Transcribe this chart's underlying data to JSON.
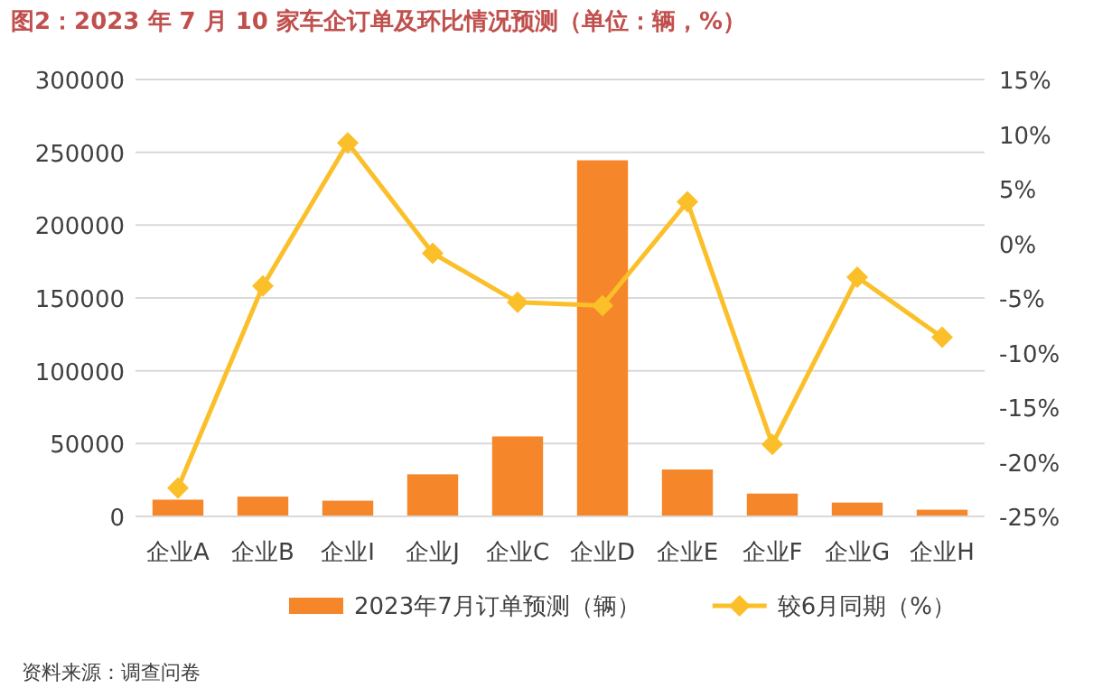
{
  "chart_data": {
    "type": "bar",
    "title": "图2：2023 年 7 月 10 家车企订单及环比情况预测（单位：辆，%）",
    "categories": [
      "企业A",
      "企业B",
      "企业I",
      "企业J",
      "企业C",
      "企业D",
      "企业E",
      "企业F",
      "企业G",
      "企业H"
    ],
    "series": [
      {
        "name": "2023年7月订单预测（辆）",
        "color": "#f5862a",
        "values": [
          11500,
          13600,
          10800,
          28900,
          54900,
          244500,
          32200,
          15700,
          9500,
          4600
        ]
      },
      {
        "name": "较6月同期（%）",
        "type": "line",
        "axis": "y2",
        "color": "#fbbf2a",
        "marker": "diamond",
        "values": [
          -22.4,
          -3.9,
          9.2,
          -0.9,
          -5.4,
          -5.7,
          3.8,
          -18.4,
          -3.1,
          -8.6
        ]
      }
    ],
    "ylim": [
      0,
      300000
    ],
    "yticks": [
      0,
      50000,
      100000,
      150000,
      200000,
      250000,
      300000
    ],
    "y2lim": [
      -25,
      15
    ],
    "y2ticks": [
      {
        "value": -25,
        "label": "-25%"
      },
      {
        "value": -20,
        "label": "-20%"
      },
      {
        "value": -15,
        "label": "-15%"
      },
      {
        "value": -10,
        "label": "-10%"
      },
      {
        "value": -5,
        "label": "-5%"
      },
      {
        "value": 0,
        "label": "0%"
      },
      {
        "value": 5,
        "label": "5%"
      },
      {
        "value": 10,
        "label": "10%"
      },
      {
        "value": 15,
        "label": "15%"
      }
    ],
    "grid": "y",
    "legend": "bottom",
    "annotations": [
      "资料来源：调查问卷"
    ]
  }
}
